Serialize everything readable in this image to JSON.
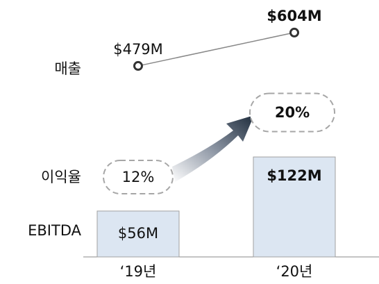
{
  "chart_data": {
    "type": "bar",
    "categories": [
      "‘19년",
      "‘20년"
    ],
    "row_labels": [
      "매출",
      "이익율",
      "EBITDA"
    ],
    "series": [
      {
        "name": "매출",
        "type": "line",
        "axis": "y2",
        "color": "#888888",
        "values": [
          479,
          604
        ],
        "value_labels": [
          "$479M",
          "$604M"
        ]
      },
      {
        "name": "이익율",
        "type": "bubble",
        "color": "#a6a6a6",
        "values": [
          12,
          20
        ],
        "value_labels": [
          "12%",
          "20%"
        ]
      },
      {
        "name": "EBITDA",
        "type": "bar",
        "color": "#dce6f2",
        "values": [
          56,
          122
        ],
        "value_labels": [
          "$56M",
          "$122M"
        ]
      }
    ],
    "ylim": [
      0,
      150
    ],
    "y2lim": [
      350,
      700
    ]
  }
}
